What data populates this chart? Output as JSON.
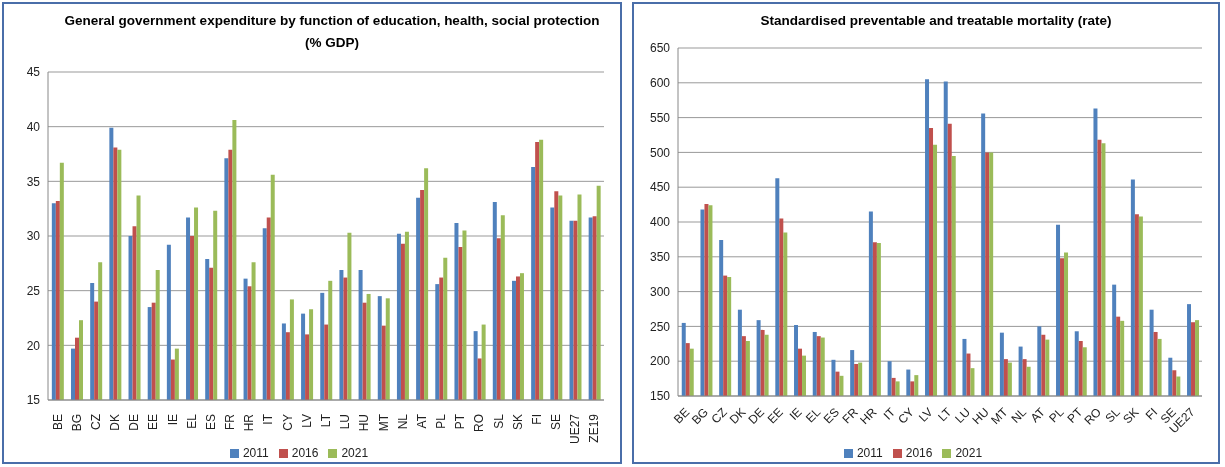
{
  "chart_data": [
    {
      "type": "bar",
      "title": "General government expenditure by function of education, health, social protection (% GDP)",
      "categories": [
        "BE",
        "BG",
        "CZ",
        "DK",
        "DE",
        "EE",
        "IE",
        "EL",
        "ES",
        "FR",
        "HR",
        "IT",
        "CY",
        "LV",
        "LT",
        "LU",
        "HU",
        "MT",
        "NL",
        "AT",
        "PL",
        "PT",
        "RO",
        "SL",
        "SK",
        "FI",
        "SE",
        "UE27",
        "ZE19"
      ],
      "series": [
        {
          "name": "2011",
          "color": "#4f81bd",
          "values": [
            33.0,
            19.7,
            25.7,
            39.9,
            30.0,
            23.5,
            29.2,
            31.7,
            27.9,
            37.1,
            26.1,
            30.7,
            22.0,
            22.9,
            24.8,
            26.9,
            26.9,
            24.5,
            30.2,
            33.5,
            25.6,
            31.2,
            21.3,
            33.1,
            25.9,
            36.3,
            32.6,
            31.4,
            31.7
          ]
        },
        {
          "name": "2016",
          "color": "#c0504d",
          "values": [
            33.2,
            20.7,
            24.0,
            38.1,
            30.9,
            23.9,
            18.7,
            30.0,
            27.1,
            37.9,
            25.4,
            31.7,
            21.2,
            21.0,
            21.9,
            26.2,
            23.9,
            21.8,
            29.3,
            34.2,
            26.2,
            29.0,
            18.8,
            29.8,
            26.3,
            38.6,
            34.1,
            31.4,
            31.8
          ]
        },
        {
          "name": "2021",
          "color": "#9bbb59",
          "values": [
            36.7,
            22.3,
            27.6,
            37.9,
            33.7,
            26.9,
            19.7,
            32.6,
            32.3,
            40.6,
            27.6,
            35.6,
            24.2,
            23.3,
            25.9,
            30.3,
            24.7,
            24.3,
            30.4,
            36.2,
            28.0,
            30.5,
            21.9,
            31.9,
            26.6,
            38.8,
            33.7,
            33.8,
            34.6
          ]
        }
      ],
      "ylim": [
        15,
        45
      ],
      "yticks": [
        15,
        20,
        25,
        30,
        35,
        40,
        45
      ],
      "grid": "y",
      "legend": "bottom"
    },
    {
      "type": "bar",
      "title": "Standardised preventable and treatable mortality (rate)",
      "categories": [
        "BE",
        "BG",
        "CZ",
        "DK",
        "DE",
        "EE",
        "IE",
        "EL",
        "ES",
        "FR",
        "HR",
        "IT",
        "CY",
        "LV",
        "LT",
        "LU",
        "HU",
        "MT",
        "NL",
        "AT",
        "PL",
        "PT",
        "RO",
        "SL",
        "SK",
        "FI",
        "SE",
        "UE27"
      ],
      "series": [
        {
          "name": "2011",
          "color": "#4f81bd",
          "values": [
            255,
            418,
            374,
            274,
            259,
            463,
            252,
            242,
            202,
            216,
            415,
            200,
            188,
            605,
            602,
            232,
            556,
            241,
            221,
            250,
            396,
            243,
            563,
            310,
            461,
            274,
            205,
            282
          ]
        },
        {
          "name": "2016",
          "color": "#c0504d",
          "values": [
            226,
            426,
            323,
            236,
            245,
            405,
            218,
            236,
            185,
            196,
            371,
            176,
            171,
            535,
            541,
            211,
            500,
            203,
            203,
            238,
            348,
            229,
            518,
            264,
            411,
            242,
            187,
            256
          ]
        },
        {
          "name": "2021",
          "color": "#9bbb59",
          "values": [
            218,
            424,
            321,
            229,
            238,
            385,
            208,
            234,
            179,
            198,
            370,
            171,
            180,
            511,
            495,
            190,
            500,
            198,
            192,
            231,
            356,
            220,
            513,
            258,
            408,
            232,
            178,
            259
          ]
        }
      ],
      "ylim": [
        150,
        650
      ],
      "yticks": [
        150,
        200,
        250,
        300,
        350,
        400,
        450,
        500,
        550,
        600,
        650
      ],
      "grid": "y",
      "legend": "bottom"
    }
  ]
}
